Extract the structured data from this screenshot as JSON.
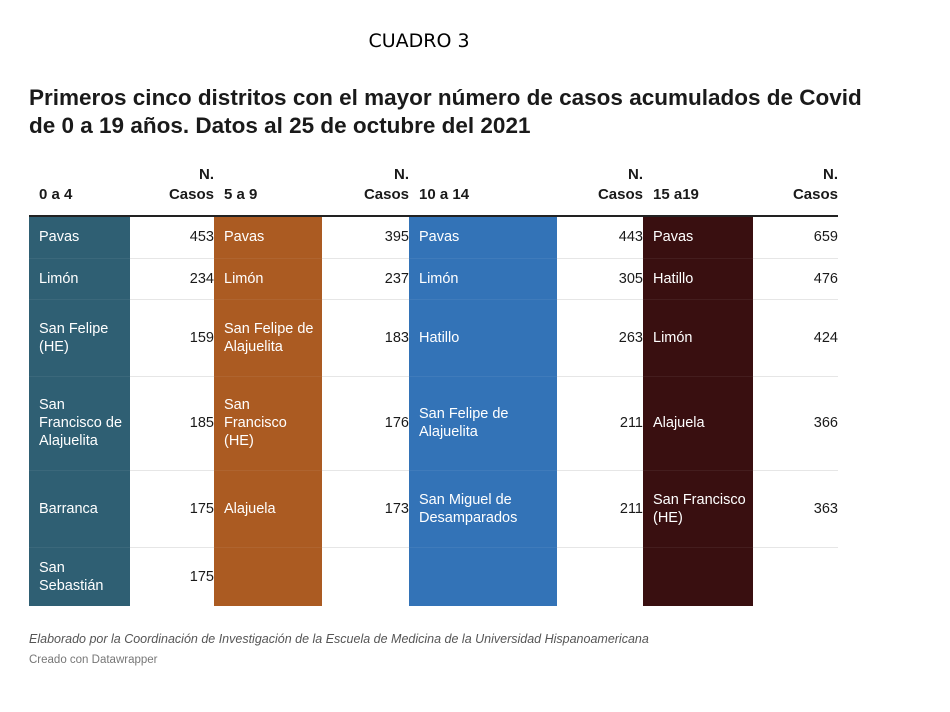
{
  "label_top": "CUADRO 3",
  "title_line1": "Primeros cinco distritos con el mayor número de casos acumulados de Covid",
  "title_line2": "de 0 a 19 años. Datos al 25 de octubre del 2021",
  "source": "Elaborado por la Coordinación de Investigación de la Escuela de Medicina de la Universidad Hispanoamericana",
  "credit": "Creado con Datawrapper",
  "colors": {
    "g0": "#2f5f73",
    "g1": "#ab5b22",
    "g2": "#3373b7",
    "g3": "#390f10"
  },
  "chart_data": {
    "type": "table",
    "columns": [
      {
        "group": "0 a 4",
        "count_header_1": "N.",
        "count_header_2": "Casos"
      },
      {
        "group": "5 a 9",
        "count_header_1": "N.",
        "count_header_2": "Casos"
      },
      {
        "group": "10 a 14",
        "count_header_1": "N.",
        "count_header_2": "Casos"
      },
      {
        "group": "15 a19",
        "count_header_1": "N.",
        "count_header_2": "Casos"
      }
    ],
    "rows": [
      [
        {
          "name": "Pavas",
          "value": "453"
        },
        {
          "name": "Pavas",
          "value": "395"
        },
        {
          "name": "Pavas",
          "value": "443"
        },
        {
          "name": "Pavas",
          "value": "659"
        }
      ],
      [
        {
          "name": "Limón",
          "value": "234"
        },
        {
          "name": "Limón",
          "value": "237"
        },
        {
          "name": "Limón",
          "value": "305"
        },
        {
          "name": "Hatillo",
          "value": "476"
        }
      ],
      [
        {
          "name": "San Felipe (HE)",
          "value": "159"
        },
        {
          "name": "San Felipe de Alajuelita",
          "value": "183"
        },
        {
          "name": "Hatillo",
          "value": "263"
        },
        {
          "name": "Limón",
          "value": "424"
        }
      ],
      [
        {
          "name": "San Francisco de Alajuelita",
          "value": "185"
        },
        {
          "name": "San Francisco (HE)",
          "value": "176"
        },
        {
          "name": "San Felipe de Alajuelita",
          "value": "211"
        },
        {
          "name": "Alajuela",
          "value": "366"
        }
      ],
      [
        {
          "name": "Barranca",
          "value": "175"
        },
        {
          "name": "Alajuela",
          "value": "173"
        },
        {
          "name": "San Miguel de Desamparados",
          "value": "211"
        },
        {
          "name": "San Francisco (HE)",
          "value": "363"
        }
      ],
      [
        {
          "name": "San Sebastián",
          "value": "175"
        },
        {
          "name": "",
          "value": ""
        },
        {
          "name": "",
          "value": ""
        },
        {
          "name": "",
          "value": ""
        }
      ]
    ]
  }
}
